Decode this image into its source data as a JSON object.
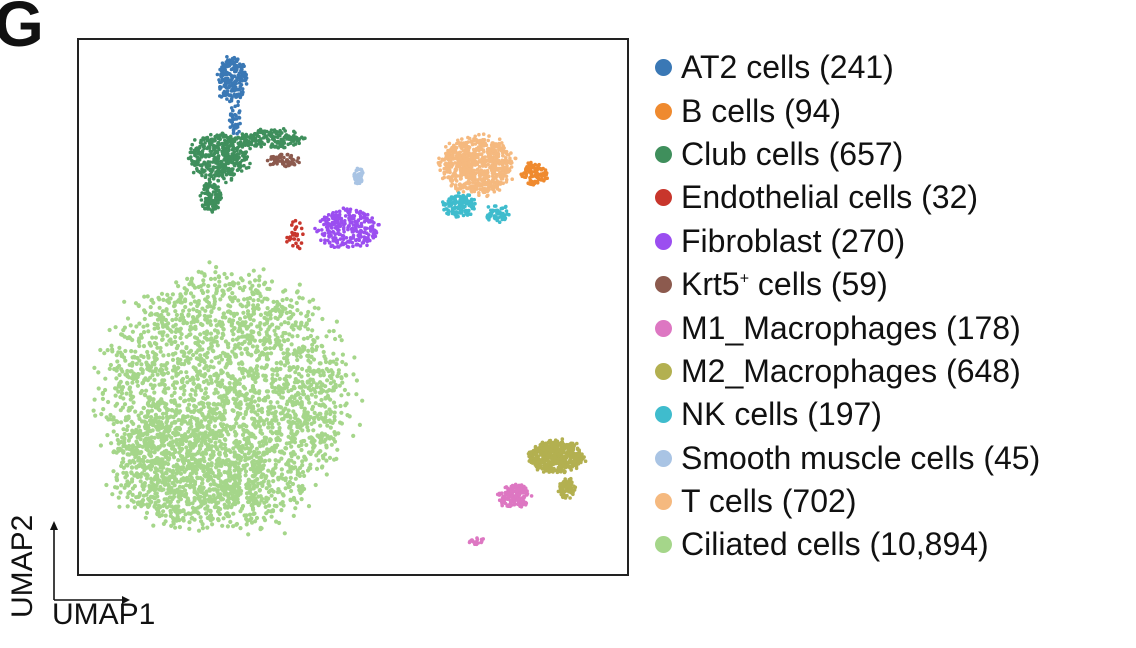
{
  "panel_label": "G",
  "chart_data": {
    "type": "scatter",
    "title": "",
    "xlabel": "UMAP1",
    "ylabel": "UMAP2",
    "xlim": [
      0,
      100
    ],
    "ylim": [
      0,
      100
    ],
    "grid": false,
    "legend_position": "right",
    "series": [
      {
        "name": "AT2 cells (241)",
        "label_base": "AT2 cells",
        "count": 241,
        "color": "#3a78b5",
        "clusters": [
          {
            "cx": 28.0,
            "cy": 92.5,
            "rx": 2.6,
            "ry": 4.5,
            "n": 200
          },
          {
            "cx": 28.5,
            "cy": 85.0,
            "rx": 1.0,
            "ry": 3.0,
            "n": 41
          }
        ]
      },
      {
        "name": "B cells (94)",
        "label_base": "B cells",
        "count": 94,
        "color": "#ef8a2f",
        "clusters": [
          {
            "cx": 83.0,
            "cy": 75.0,
            "rx": 2.4,
            "ry": 2.2,
            "n": 94
          }
        ]
      },
      {
        "name": "Club cells (657)",
        "label_base": "Club cells",
        "count": 657,
        "color": "#3f8f5c",
        "clusters": [
          {
            "cx": 25.5,
            "cy": 78.0,
            "rx": 5.5,
            "ry": 4.5,
            "n": 380
          },
          {
            "cx": 35.0,
            "cy": 81.5,
            "rx": 6.5,
            "ry": 1.8,
            "n": 170
          },
          {
            "cx": 24.0,
            "cy": 70.5,
            "rx": 2.0,
            "ry": 3.0,
            "n": 107
          }
        ]
      },
      {
        "name": "Endothelial cells (32)",
        "label_base": "Endothelial cells",
        "count": 32,
        "color": "#c8362c",
        "clusters": [
          {
            "cx": 39.5,
            "cy": 63.5,
            "rx": 1.6,
            "ry": 2.8,
            "n": 32
          }
        ]
      },
      {
        "name": "Fibroblast (270)",
        "label_base": "Fibroblast",
        "count": 270,
        "color": "#9b4ef0",
        "clusters": [
          {
            "cx": 49.0,
            "cy": 64.5,
            "rx": 5.5,
            "ry": 3.8,
            "n": 270
          }
        ]
      },
      {
        "name": "Krt5⁺ cells (59)",
        "label_base": "Krt5",
        "label_sup": "+",
        "label_tail": " cells (59)",
        "count": 59,
        "color": "#8c5a4e",
        "clusters": [
          {
            "cx": 37.5,
            "cy": 77.5,
            "rx": 3.0,
            "ry": 1.2,
            "n": 59
          }
        ]
      },
      {
        "name": "M1_Macrophages (178)",
        "label_base": "M1_Macrophages",
        "count": 178,
        "color": "#dd77c2",
        "clusters": [
          {
            "cx": 79.5,
            "cy": 14.5,
            "rx": 3.0,
            "ry": 2.2,
            "n": 160
          },
          {
            "cx": 72.5,
            "cy": 6.0,
            "rx": 1.6,
            "ry": 0.8,
            "n": 18
          }
        ]
      },
      {
        "name": "M2_Macrophages (648)",
        "label_base": "M2_Macrophages",
        "count": 648,
        "color": "#b3b050",
        "clusters": [
          {
            "cx": 87.0,
            "cy": 22.0,
            "rx": 5.0,
            "ry": 3.0,
            "n": 560
          },
          {
            "cx": 89.0,
            "cy": 16.0,
            "rx": 1.5,
            "ry": 2.0,
            "n": 88
          }
        ]
      },
      {
        "name": "NK cells (197)",
        "label_base": "NK cells",
        "count": 197,
        "color": "#3fbccd",
        "clusters": [
          {
            "cx": 69.5,
            "cy": 69.0,
            "rx": 3.0,
            "ry": 2.2,
            "n": 140
          },
          {
            "cx": 76.5,
            "cy": 67.5,
            "rx": 2.2,
            "ry": 1.6,
            "n": 57
          }
        ]
      },
      {
        "name": "Smooth muscle cells (45)",
        "label_base": "Smooth muscle cells",
        "count": 45,
        "color": "#a9c4e4",
        "clusters": [
          {
            "cx": 51.0,
            "cy": 74.5,
            "rx": 0.8,
            "ry": 1.8,
            "n": 45
          }
        ]
      },
      {
        "name": "T cells (702)",
        "label_base": "T cells",
        "count": 702,
        "color": "#f5b97f",
        "clusters": [
          {
            "cx": 72.5,
            "cy": 76.5,
            "rx": 6.5,
            "ry": 5.5,
            "n": 702
          }
        ]
      },
      {
        "name": "Ciliated cells (10,894)",
        "label_base": "Ciliated cells",
        "count": 10894,
        "color": "#a5d68a",
        "clusters": [
          {
            "cx": 26.5,
            "cy": 32.5,
            "rx": 22.0,
            "ry": 23.5,
            "n": 2600
          },
          {
            "cx": 20.0,
            "cy": 20.0,
            "rx": 14.0,
            "ry": 11.0,
            "n": 700
          }
        ]
      }
    ]
  }
}
